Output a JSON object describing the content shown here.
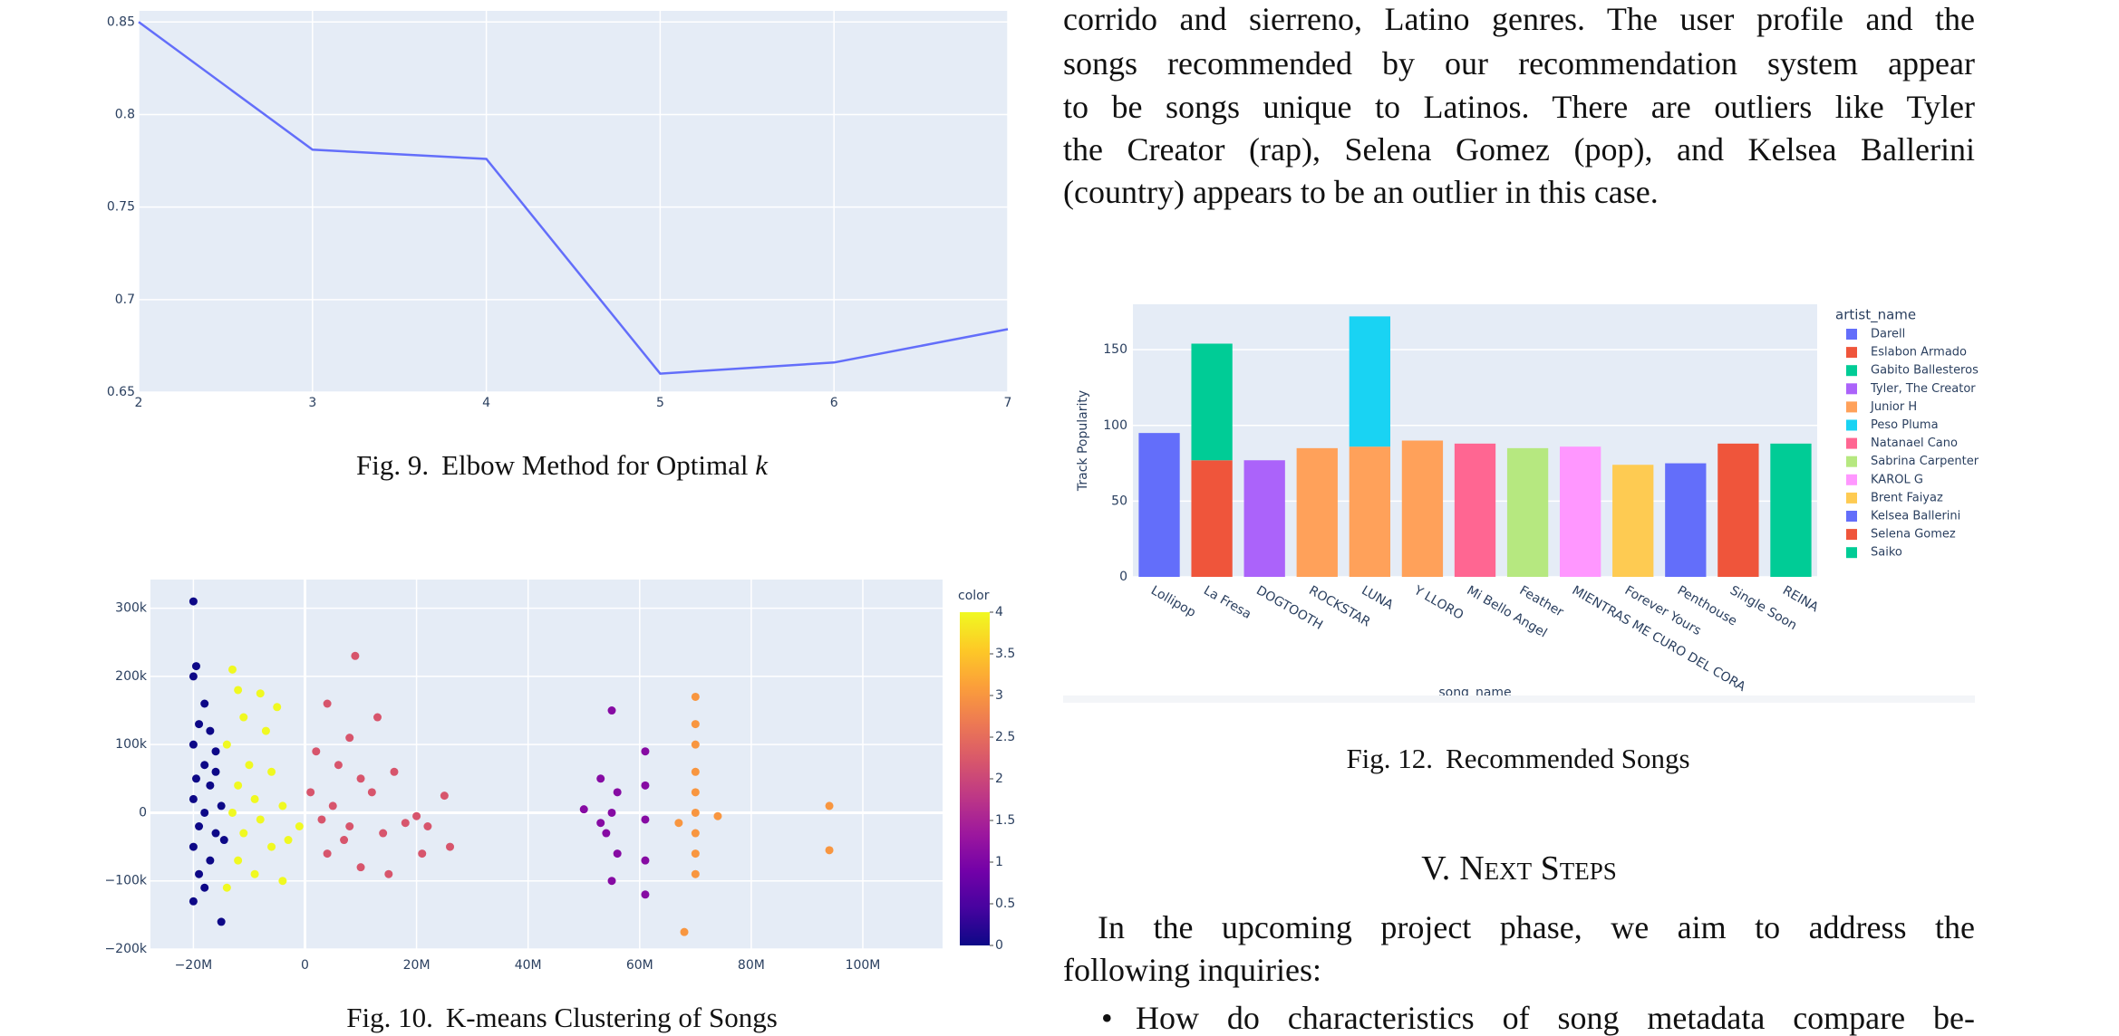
{
  "chart_data": [
    {
      "type": "line",
      "x": [
        2,
        3,
        4,
        5,
        6,
        7
      ],
      "values": [
        0.85,
        0.781,
        0.776,
        0.66,
        0.666,
        0.684
      ],
      "color": "#636efa",
      "xlim": [
        2,
        7
      ],
      "ylim": [
        0.65,
        0.856
      ],
      "xticks": [
        2,
        3,
        4,
        5,
        6,
        7
      ],
      "yticks": [
        0.65,
        0.7,
        0.75,
        0.8,
        0.85
      ],
      "grid": true,
      "caption": {
        "label": "Fig. 9.",
        "text": "Elbow Method for Optimal",
        "math": "k"
      }
    },
    {
      "type": "scatter",
      "x": [
        -20000000,
        -19500000,
        -20000000,
        -18000000,
        -19000000,
        -17000000,
        -20000000,
        -16000000,
        -18000000,
        -19500000,
        -17000000,
        -20000000,
        -15000000,
        -18000000,
        -19000000,
        -16000000,
        -20000000,
        -17000000,
        -19000000,
        -18000000,
        -20000000,
        -15000000,
        -16000000,
        -14500000,
        -13000000,
        -12000000,
        -8000000,
        -5000000,
        -11000000,
        -7000000,
        -14000000,
        -10000000,
        -6000000,
        -12000000,
        -9000000,
        -4000000,
        -13000000,
        -8000000,
        -11000000,
        -6000000,
        -12000000,
        -9000000,
        -4000000,
        -14000000,
        -3000000,
        -1000000,
        9000000,
        4000000,
        8000000,
        13000000,
        2000000,
        6000000,
        10000000,
        16000000,
        1000000,
        12000000,
        25000000,
        5000000,
        3000000,
        8000000,
        14000000,
        20000000,
        22000000,
        26000000,
        4000000,
        10000000,
        15000000,
        21000000,
        7000000,
        18000000,
        55000000,
        61000000,
        53000000,
        56000000,
        61000000,
        50000000,
        55000000,
        61000000,
        54000000,
        56000000,
        61000000,
        55000000,
        61000000,
        53000000,
        70000000,
        70000000,
        70000000,
        70000000,
        70000000,
        70000000,
        74000000,
        67000000,
        70000000,
        70000000,
        70000000,
        68000000,
        94000000,
        94000000
      ],
      "values": [
        310000,
        215000,
        200000,
        160000,
        130000,
        120000,
        100000,
        90000,
        70000,
        50000,
        40000,
        20000,
        10000,
        0,
        -20000,
        -30000,
        -50000,
        -70000,
        -90000,
        -110000,
        -130000,
        -160000,
        60000,
        -40000,
        210000,
        180000,
        175000,
        155000,
        140000,
        120000,
        100000,
        70000,
        60000,
        40000,
        20000,
        10000,
        0,
        -10000,
        -30000,
        -50000,
        -70000,
        -90000,
        -100000,
        -110000,
        -40000,
        -20000,
        230000,
        160000,
        110000,
        140000,
        90000,
        70000,
        50000,
        60000,
        30000,
        30000,
        25000,
        10000,
        -10000,
        -20000,
        -30000,
        -5000,
        -20000,
        -50000,
        -60000,
        -80000,
        -90000,
        -60000,
        -40000,
        -15000,
        150000,
        90000,
        50000,
        30000,
        40000,
        5000,
        0,
        -10000,
        -30000,
        -60000,
        -70000,
        -100000,
        -120000,
        -15000,
        170000,
        130000,
        100000,
        60000,
        30000,
        0,
        -5000,
        -15000,
        -30000,
        -60000,
        -90000,
        -175000,
        10000,
        -55000
      ],
      "color_values": [
        0,
        0,
        0,
        0,
        0,
        0,
        0,
        0,
        0,
        0,
        0,
        0,
        0,
        0,
        0,
        0,
        0,
        0,
        0,
        0,
        0,
        0,
        0,
        0,
        4,
        4,
        4,
        4,
        4,
        4,
        4,
        4,
        4,
        4,
        4,
        4,
        4,
        4,
        4,
        4,
        4,
        4,
        4,
        4,
        4,
        4,
        2.2,
        2.2,
        2.2,
        2.2,
        2.2,
        2.2,
        2.2,
        2.2,
        2.2,
        2.2,
        2.2,
        2.2,
        2.2,
        2.2,
        2.2,
        2.2,
        2.2,
        2.2,
        2.2,
        2.2,
        2.2,
        2.2,
        2.2,
        2.2,
        1.1,
        1.1,
        1.1,
        1.1,
        1.1,
        1.1,
        1.1,
        1.1,
        1.1,
        1.1,
        1.1,
        1.1,
        1.1,
        1.1,
        3,
        3,
        3,
        3,
        3,
        3,
        3,
        3,
        3,
        3,
        3,
        3,
        3,
        3
      ],
      "colorscale": [
        "#0d0887",
        "#46039f",
        "#7201a8",
        "#9c179e",
        "#bd3786",
        "#d8576b",
        "#ed7953",
        "#fb9f3a",
        "#fdca26",
        "#f0f921"
      ],
      "xlim": [
        -27700000,
        114300000
      ],
      "ylim": [
        -200000,
        342000
      ],
      "xticks": [
        {
          "value": -20000000,
          "label": "−20M"
        },
        0,
        {
          "value": 20000000,
          "label": "20M"
        },
        {
          "value": 40000000,
          "label": "40M"
        },
        {
          "value": 60000000,
          "label": "60M"
        },
        {
          "value": 80000000,
          "label": "80M"
        },
        {
          "value": 100000000,
          "label": "100M"
        }
      ],
      "yticks": [
        {
          "value": -200000,
          "label": "−200k"
        },
        {
          "value": -100000,
          "label": "−100k"
        },
        0,
        {
          "value": 100000,
          "label": "100k"
        },
        {
          "value": 200000,
          "label": "200k"
        },
        {
          "value": 300000,
          "label": "300k"
        }
      ],
      "grid": true,
      "colorbar": {
        "title": "color",
        "lim": [
          0,
          4
        ],
        "ticks": [
          0,
          0.5,
          1,
          1.5,
          2,
          2.5,
          3,
          3.5,
          4
        ]
      },
      "caption": {
        "label": "Fig. 10.",
        "text": "K-means Clustering of Songs"
      }
    },
    {
      "type": "bar",
      "stacked": true,
      "categories": [
        "Lollipop",
        "La Fresa",
        "DOGTOOTH",
        "ROCKSTAR",
        "LUNA",
        "Y LLORO",
        "Mi Bello Angel",
        "Feather",
        "MIENTRAS ME CURO DEL CORA",
        "Forever Yours",
        "Penthouse",
        "Single Soon",
        "REINA"
      ],
      "series": [
        {
          "name": "Darell",
          "color": "#636efa",
          "values": [
            95,
            null,
            null,
            null,
            null,
            null,
            null,
            null,
            null,
            null,
            null,
            null,
            null
          ]
        },
        {
          "name": "Eslabon Armado",
          "color": "#ef553b",
          "values": [
            null,
            77,
            null,
            null,
            null,
            null,
            null,
            null,
            null,
            null,
            null,
            null,
            null
          ]
        },
        {
          "name": "Gabito Ballesteros",
          "color": "#00cc96",
          "values": [
            null,
            77,
            null,
            null,
            null,
            null,
            null,
            null,
            null,
            null,
            null,
            null,
            null
          ]
        },
        {
          "name": "Tyler, The Creator",
          "color": "#ab63fa",
          "values": [
            null,
            null,
            77,
            null,
            null,
            null,
            null,
            null,
            null,
            null,
            null,
            null,
            null
          ]
        },
        {
          "name": "Junior H",
          "color": "#ffa15a",
          "values": [
            null,
            null,
            null,
            85,
            86,
            90,
            null,
            null,
            null,
            null,
            null,
            null,
            null
          ]
        },
        {
          "name": "Peso Pluma",
          "color": "#19d3f3",
          "values": [
            null,
            null,
            null,
            null,
            86,
            null,
            null,
            null,
            null,
            null,
            null,
            null,
            null
          ]
        },
        {
          "name": "Natanael Cano",
          "color": "#ff6692",
          "values": [
            null,
            null,
            null,
            null,
            null,
            null,
            88,
            null,
            null,
            null,
            null,
            null,
            null
          ]
        },
        {
          "name": "Sabrina Carpenter",
          "color": "#b6e880",
          "values": [
            null,
            null,
            null,
            null,
            null,
            null,
            null,
            85,
            null,
            null,
            null,
            null,
            null
          ]
        },
        {
          "name": "KAROL G",
          "color": "#ff97ff",
          "values": [
            null,
            null,
            null,
            null,
            null,
            null,
            null,
            null,
            86,
            null,
            null,
            null,
            null
          ]
        },
        {
          "name": "Brent Faiyaz",
          "color": "#fecb52",
          "values": [
            null,
            null,
            null,
            null,
            null,
            null,
            null,
            null,
            null,
            74,
            null,
            null,
            null
          ]
        },
        {
          "name": "Kelsea Ballerini",
          "color": "#636efa",
          "values": [
            null,
            null,
            null,
            null,
            null,
            null,
            null,
            null,
            null,
            null,
            75,
            null,
            null
          ]
        },
        {
          "name": "Selena Gomez",
          "color": "#ef553b",
          "values": [
            null,
            null,
            null,
            null,
            null,
            null,
            null,
            null,
            null,
            null,
            null,
            88,
            null
          ]
        },
        {
          "name": "Saiko",
          "color": "#00cc96",
          "values": [
            null,
            null,
            null,
            null,
            null,
            null,
            null,
            null,
            null,
            null,
            null,
            null,
            88
          ]
        }
      ],
      "ylim": [
        0,
        180
      ],
      "yticks": [
        0,
        50,
        100,
        150
      ],
      "grid": true,
      "x_label": "song_name",
      "y_label": "Track Popularity",
      "legend_title": "artist_name",
      "legend": "right",
      "caption": {
        "label": "Fig. 12.",
        "text": "Recommended Songs"
      }
    }
  ],
  "text": {
    "paragraph_1": [
      "corrido and sierreno, Latino genres. The user profile and the",
      "songs recommended by our recommendation system appear",
      "to be songs unique to Latinos. There are outliers like Tyler",
      "the Creator (rap), Selena Gomez (pop), and Kelsea Ballerini",
      "(country) appears to be an outlier in this case."
    ],
    "heading": {
      "number": "V.",
      "title": "Next Steps"
    },
    "paragraph_2": [
      "In the upcoming project phase, we aim to address the",
      "following inquiries:"
    ],
    "bullets": [
      "How do characteristics of song metadata compare be-"
    ]
  }
}
